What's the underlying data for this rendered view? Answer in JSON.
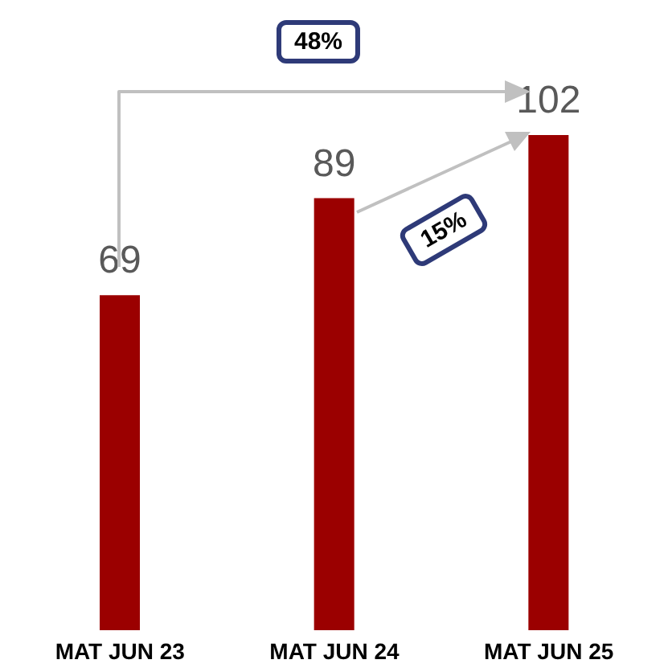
{
  "chart_data": {
    "type": "bar",
    "categories": [
      "MAT JUN 23",
      "MAT JUN 24",
      "MAT JUN 25"
    ],
    "values": [
      69,
      89,
      102
    ],
    "color": "#9b0000",
    "data_labels": true,
    "annotations": [
      "48%",
      "15%"
    ]
  }
}
